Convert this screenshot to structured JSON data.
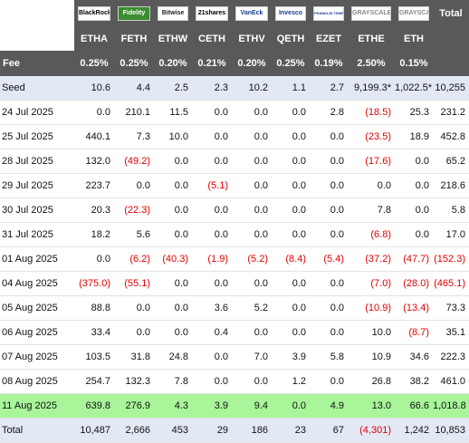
{
  "header": {
    "logos": [
      "BlackRock",
      "Fidelity",
      "Bitwise",
      "21shares",
      "VanEck",
      "Invesco",
      "FRANKLIN TEMPLETON",
      "GRAYSCALE",
      "GRAYSCALE"
    ],
    "total": "Total"
  },
  "table": {
    "columns": [
      "ETHA",
      "FETH",
      "ETHW",
      "CETH",
      "ETHV",
      "QETH",
      "EZET",
      "ETHE",
      "ETH"
    ],
    "fee": [
      "Fee",
      "0.25%",
      "0.25%",
      "0.20%",
      "0.21%",
      "0.20%",
      "0.25%",
      "0.19%",
      "2.50%",
      "0.15%"
    ],
    "rows": [
      [
        "Seed",
        "10.6",
        "4.4",
        "2.5",
        "2.3",
        "10.2",
        "1.1",
        "2.7",
        "9,199.3*",
        "1,022.5*",
        "10,255"
      ],
      [
        "24 Jul 2025",
        "0.0",
        "210.1",
        "11.5",
        "0.0",
        "0.0",
        "0.0",
        "2.8",
        "(18.5)",
        "25.3",
        "231.2"
      ],
      [
        "25 Jul 2025",
        "440.1",
        "7.3",
        "10.0",
        "0.0",
        "0.0",
        "0.0",
        "0.0",
        "(23.5)",
        "18.9",
        "452.8"
      ],
      [
        "28 Jul 2025",
        "132.0",
        "(49.2)",
        "0.0",
        "0.0",
        "0.0",
        "0.0",
        "0.0",
        "(17.6)",
        "0.0",
        "65.2"
      ],
      [
        "29 Jul 2025",
        "223.7",
        "0.0",
        "0.0",
        "(5.1)",
        "0.0",
        "0.0",
        "0.0",
        "0.0",
        "0.0",
        "218.6"
      ],
      [
        "30 Jul 2025",
        "20.3",
        "(22.3)",
        "0.0",
        "0.0",
        "0.0",
        "0.0",
        "0.0",
        "7.8",
        "0.0",
        "5.8"
      ],
      [
        "31 Jul 2025",
        "18.2",
        "5.6",
        "0.0",
        "0.0",
        "0.0",
        "0.0",
        "0.0",
        "(6.8)",
        "0.0",
        "17.0"
      ],
      [
        "01 Aug 2025",
        "0.0",
        "(6.2)",
        "(40.3)",
        "(1.9)",
        "(5.2)",
        "(8.4)",
        "(5.4)",
        "(37.2)",
        "(47.7)",
        "(152.3)"
      ],
      [
        "04 Aug 2025",
        "(375.0)",
        "(55.1)",
        "0.0",
        "0.0",
        "0.0",
        "0.0",
        "0.0",
        "(7.0)",
        "(28.0)",
        "(465.1)"
      ],
      [
        "05 Aug 2025",
        "88.8",
        "0.0",
        "0.0",
        "3.6",
        "5.2",
        "0.0",
        "0.0",
        "(10.9)",
        "(13.4)",
        "73.3"
      ],
      [
        "06 Aug 2025",
        "33.4",
        "0.0",
        "0.0",
        "0.4",
        "0.0",
        "0.0",
        "0.0",
        "10.0",
        "(8.7)",
        "35.1"
      ],
      [
        "07 Aug 2025",
        "103.5",
        "31.8",
        "24.8",
        "0.0",
        "7.0",
        "3.9",
        "5.8",
        "10.9",
        "34.6",
        "222.3"
      ],
      [
        "08 Aug 2025",
        "254.7",
        "132.3",
        "7.8",
        "0.0",
        "0.0",
        "1.2",
        "0.0",
        "26.8",
        "38.2",
        "461.0"
      ],
      [
        "11 Aug 2025",
        "639.8",
        "276.9",
        "4.3",
        "3.9",
        "9.4",
        "0.0",
        "4.9",
        "13.0",
        "66.6",
        "1,018.8"
      ],
      [
        "Total",
        "10,487",
        "2,666",
        "453",
        "29",
        "186",
        "23",
        "67",
        "(4,301)",
        "1,242",
        "10,853"
      ]
    ]
  }
}
